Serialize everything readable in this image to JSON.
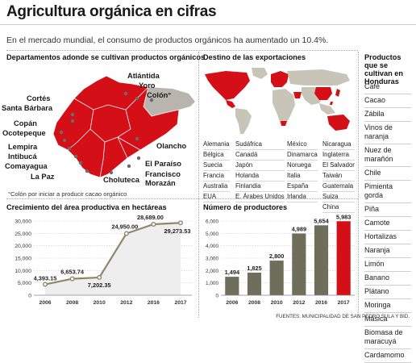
{
  "header": {
    "title": "Agricultura orgánica en cifras",
    "subtitle": "En el mercado mundial, el consumo de productos orgánicos ha aumentado un 10.4%."
  },
  "departments": {
    "title": "Departamentos adonde se cultivan productos orgánicos",
    "labels": [
      "Atlántida",
      "Yoro",
      "Colón°",
      "Cortés",
      "Santa Bárbara",
      "Copán",
      "Ocotepeque",
      "Olancho",
      "Lempira",
      "Intibucá",
      "Comayagua",
      "La Paz",
      "El Paraíso",
      "Francisco",
      "Morazán",
      "Choluteca"
    ],
    "footnote": "°Colón por iniciar a producir cacao orgánico",
    "colors": {
      "producing": "#d50f17",
      "other": "#b9b5ae",
      "border": "#ffffff"
    }
  },
  "exports": {
    "title": "Destino de las exportaciones",
    "columns": [
      [
        "Alemania",
        "Bélgica",
        "Suecia",
        "Francia",
        "Australia",
        "EUA"
      ],
      [
        "Sudáfrica",
        "Canadá",
        "Japón",
        "Holanda",
        "Finlandia",
        "E. Árabes Unidos"
      ],
      [
        "México",
        "Dinamarca",
        "Noruega",
        "Italia",
        "España",
        "Irlanda"
      ],
      [
        "Nicaragua",
        "Inglaterra",
        "El Salvador",
        "Taiwán",
        "Guatemala",
        "Suiza",
        "China"
      ]
    ],
    "colors": {
      "destination": "#d50f17",
      "land": "#c9c4b8"
    }
  },
  "products": {
    "title": "Productos que se cultivan en Honduras",
    "items": [
      "Café",
      "Cacao",
      "Zábila",
      "Vinos de naranja",
      "Nuez de marañón",
      "Chile",
      "Pimienta gorda",
      "Piña",
      "Camote",
      "Hortalizas",
      "Naranja",
      "Limón",
      "Banano",
      "Plátano",
      "Moringa",
      "Másica",
      "Biomasa de maracuyá",
      "Cardamomo"
    ]
  },
  "sources": "FUENTES: MUNICIPALIDAD DE SAN PEDRO SULA Y BID.",
  "chart_data": [
    {
      "type": "area",
      "title": "Crecimiento del área productiva en hectáreas",
      "x": [
        "2006",
        "2008",
        "2010",
        "2012",
        "2016",
        "2017"
      ],
      "values": [
        4393.15,
        6653.74,
        7202.35,
        24950.0,
        28689.0,
        29273.53
      ],
      "data_labels": [
        "4,393.15",
        "6,653.74",
        "7,202.35",
        "24,950.00",
        "28,689.00",
        "29,273.53"
      ],
      "ylim": [
        0,
        30000
      ],
      "yticks": [
        "0",
        "5,000",
        "10,000",
        "15,000",
        "20,000",
        "25,000",
        "30,000"
      ],
      "grid": true,
      "colors": {
        "line": "#8a8a6a",
        "fill": "#eeeeee",
        "marker": "#8a8a6a"
      }
    },
    {
      "type": "bar",
      "title": "Número de productores",
      "categories": [
        "2006",
        "2008",
        "2010",
        "2012",
        "2016",
        "2017"
      ],
      "values": [
        1494,
        1825,
        2800,
        4989,
        5654,
        5983
      ],
      "data_labels": [
        "1,494",
        "1,825",
        "2,800",
        "4,989",
        "5,654",
        "5,983"
      ],
      "ylim": [
        0,
        6000
      ],
      "yticks": [
        "0",
        "1,000",
        "2,000",
        "3,000",
        "4,000",
        "5,000",
        "6,000"
      ],
      "grid": true,
      "colors": {
        "bar": "#6f6e5b",
        "highlight": "#d50f17"
      }
    }
  ]
}
